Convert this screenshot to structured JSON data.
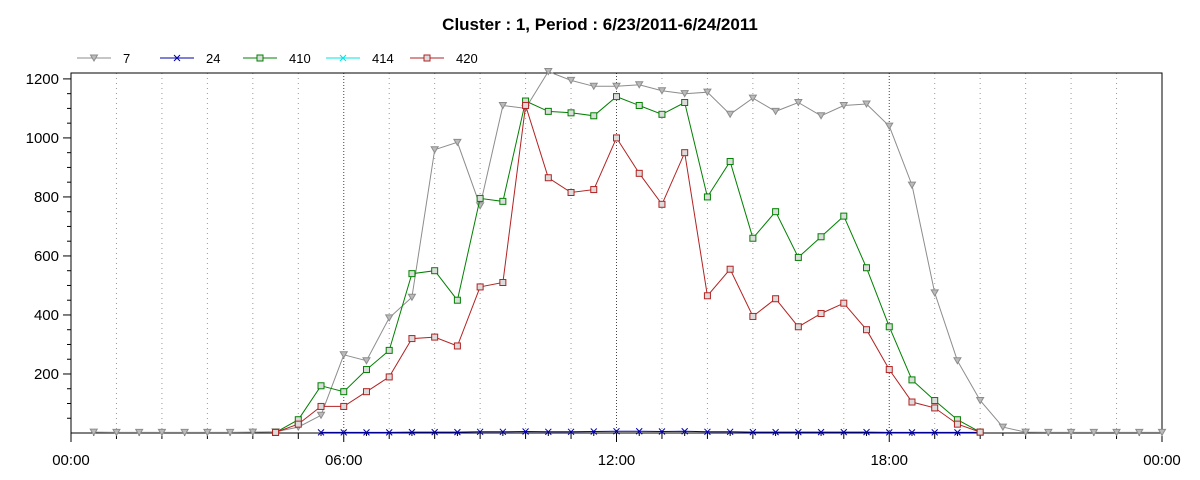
{
  "chart_data": {
    "type": "line",
    "title": "Cluster : 1, Period : 6/23/2011-6/24/2011",
    "xlabel": "",
    "ylabel": "",
    "x_unit": "hours",
    "xlim": [
      0,
      24
    ],
    "ylim": [
      0,
      1220
    ],
    "x_ticks": [
      0,
      6,
      12,
      18,
      24
    ],
    "x_tick_labels": [
      "00:00",
      "06:00",
      "12:00",
      "18:00",
      "00:00"
    ],
    "y_ticks": [
      200,
      400,
      600,
      800,
      1000,
      1200
    ],
    "y_tick_labels": [
      "200",
      "400",
      "600",
      "800",
      "1000",
      "1200"
    ],
    "grid": "vertical dotted",
    "legend_position": "top-left",
    "series": [
      {
        "name": "7",
        "color": "#8c8c8c",
        "marker": "triangle-down",
        "points": [
          [
            0.5,
            3
          ],
          [
            1,
            2
          ],
          [
            1.5,
            2
          ],
          [
            2,
            2
          ],
          [
            2.5,
            2
          ],
          [
            3,
            2
          ],
          [
            3.5,
            2
          ],
          [
            4,
            3
          ],
          [
            4.5,
            4
          ],
          [
            5,
            20
          ],
          [
            5.5,
            60
          ],
          [
            6,
            265
          ],
          [
            6.5,
            245
          ],
          [
            7,
            390
          ],
          [
            7.5,
            460
          ],
          [
            8,
            960
          ],
          [
            8.5,
            985
          ],
          [
            9,
            770
          ],
          [
            9.5,
            1110
          ],
          [
            10,
            1100
          ],
          [
            10.5,
            1225
          ],
          [
            11,
            1195
          ],
          [
            11.5,
            1175
          ],
          [
            12,
            1175
          ],
          [
            12.5,
            1180
          ],
          [
            13,
            1160
          ],
          [
            13.5,
            1150
          ],
          [
            14,
            1155
          ],
          [
            14.5,
            1080
          ],
          [
            15,
            1135
          ],
          [
            15.5,
            1090
          ],
          [
            16,
            1120
          ],
          [
            16.5,
            1075
          ],
          [
            17,
            1110
          ],
          [
            17.5,
            1115
          ],
          [
            18,
            1040
          ],
          [
            18.5,
            840
          ],
          [
            19,
            475
          ],
          [
            19.5,
            245
          ],
          [
            20,
            110
          ],
          [
            20.5,
            20
          ],
          [
            21,
            3
          ],
          [
            21.5,
            2
          ],
          [
            22,
            2
          ],
          [
            22.5,
            2
          ],
          [
            23,
            2
          ],
          [
            23.5,
            2
          ],
          [
            24,
            2
          ]
        ]
      },
      {
        "name": "24",
        "color": "#0000aa",
        "marker": "x",
        "points": [
          [
            5.5,
            2
          ],
          [
            6,
            2
          ],
          [
            6.5,
            2
          ],
          [
            7,
            2
          ],
          [
            7.5,
            3
          ],
          [
            8,
            3
          ],
          [
            8.5,
            3
          ],
          [
            9,
            4
          ],
          [
            9.5,
            4
          ],
          [
            10,
            5
          ],
          [
            10.5,
            4
          ],
          [
            11,
            4
          ],
          [
            11.5,
            5
          ],
          [
            12,
            6
          ],
          [
            12.5,
            6
          ],
          [
            13,
            5
          ],
          [
            13.5,
            6
          ],
          [
            14,
            4
          ],
          [
            14.5,
            4
          ],
          [
            15,
            3
          ],
          [
            15.5,
            3
          ],
          [
            16,
            3
          ],
          [
            16.5,
            3
          ],
          [
            17,
            3
          ],
          [
            17.5,
            3
          ],
          [
            18,
            2
          ],
          [
            18.5,
            2
          ],
          [
            19,
            2
          ],
          [
            19.5,
            2
          ],
          [
            20,
            2
          ]
        ]
      },
      {
        "name": "410",
        "color": "#008000",
        "marker": "square",
        "points": [
          [
            4.5,
            2
          ],
          [
            5,
            45
          ],
          [
            5.5,
            160
          ],
          [
            6,
            140
          ],
          [
            6.5,
            215
          ],
          [
            7,
            280
          ],
          [
            7.5,
            540
          ],
          [
            8,
            550
          ],
          [
            8.5,
            450
          ],
          [
            9,
            795
          ],
          [
            9.5,
            785
          ],
          [
            10,
            1125
          ],
          [
            10.5,
            1090
          ],
          [
            11,
            1085
          ],
          [
            11.5,
            1075
          ],
          [
            12,
            1140
          ],
          [
            12.5,
            1110
          ],
          [
            13,
            1080
          ],
          [
            13.5,
            1120
          ],
          [
            14,
            800
          ],
          [
            14.5,
            920
          ],
          [
            15,
            660
          ],
          [
            15.5,
            750
          ],
          [
            16,
            595
          ],
          [
            16.5,
            665
          ],
          [
            17,
            735
          ],
          [
            17.5,
            560
          ],
          [
            18,
            360
          ],
          [
            18.5,
            180
          ],
          [
            19,
            110
          ],
          [
            19.5,
            45
          ],
          [
            20,
            3
          ]
        ]
      },
      {
        "name": "414",
        "color": "#00e5e5",
        "marker": "x",
        "points": []
      },
      {
        "name": "420",
        "color": "#b22222",
        "marker": "square",
        "points": [
          [
            4.5,
            2
          ],
          [
            5,
            30
          ],
          [
            5.5,
            90
          ],
          [
            6,
            90
          ],
          [
            6.5,
            140
          ],
          [
            7,
            190
          ],
          [
            7.5,
            320
          ],
          [
            8,
            325
          ],
          [
            8.5,
            295
          ],
          [
            9,
            495
          ],
          [
            9.5,
            510
          ],
          [
            10,
            1110
          ],
          [
            10.5,
            865
          ],
          [
            11,
            815
          ],
          [
            11.5,
            825
          ],
          [
            12,
            1000
          ],
          [
            12.5,
            880
          ],
          [
            13,
            775
          ],
          [
            13.5,
            950
          ],
          [
            14,
            465
          ],
          [
            14.5,
            555
          ],
          [
            15,
            395
          ],
          [
            15.5,
            455
          ],
          [
            16,
            360
          ],
          [
            16.5,
            405
          ],
          [
            17,
            440
          ],
          [
            17.5,
            350
          ],
          [
            18,
            215
          ],
          [
            18.5,
            105
          ],
          [
            19,
            85
          ],
          [
            19.5,
            30
          ],
          [
            20,
            3
          ]
        ]
      }
    ]
  }
}
